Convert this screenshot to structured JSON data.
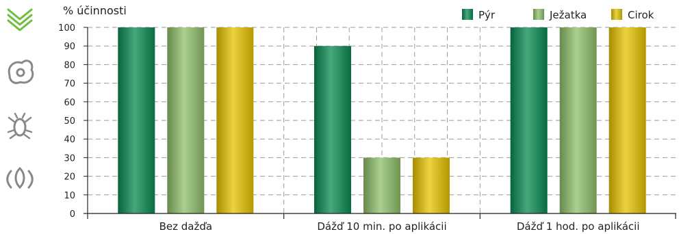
{
  "icons": {
    "rail": [
      "double-chevron-down-icon",
      "seed-icon",
      "bug-icon",
      "leaf-icon"
    ],
    "accent": "#6cbf3e",
    "muted": "#888888"
  },
  "chart_data": {
    "type": "bar",
    "ylabel": "% účinnosti",
    "ylim": [
      0,
      100
    ],
    "yticks": [
      0,
      10,
      20,
      30,
      40,
      50,
      60,
      70,
      80,
      90,
      100
    ],
    "grid": true,
    "legend_position": "top-right",
    "categories": [
      "Bez dažďa",
      "Dážď 10 min. po aplikácii",
      "Dážď 1 hod. po aplikácii"
    ],
    "series": [
      {
        "name": "Pýr",
        "color": "#0a8a52",
        "values": [
          100,
          90,
          100
        ]
      },
      {
        "name": "Ježatka",
        "color": "#8fbf6a",
        "values": [
          100,
          30,
          100
        ]
      },
      {
        "name": "Cirok",
        "color": "#e7c300",
        "values": [
          100,
          30,
          100
        ]
      }
    ]
  }
}
